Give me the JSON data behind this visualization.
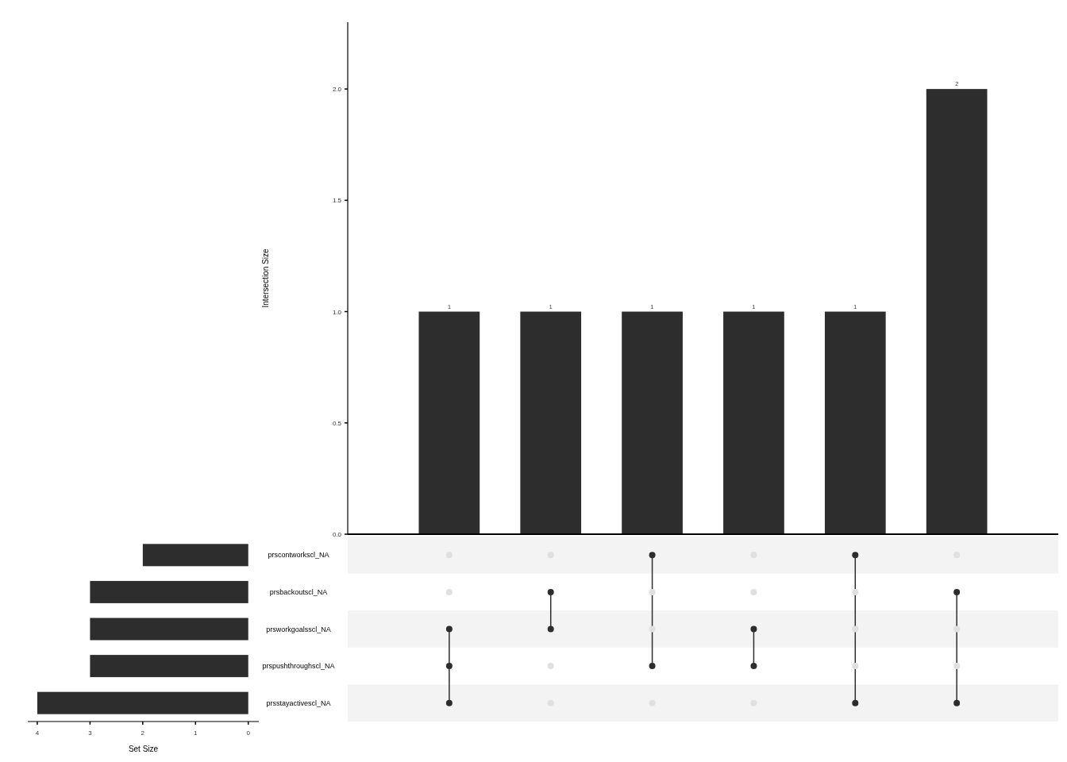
{
  "chart_data": [
    {
      "type": "bar",
      "ylabel": "Intersection Size",
      "categories": [
        null,
        null,
        null,
        null,
        null,
        null
      ],
      "values": [
        1,
        1,
        1,
        1,
        1,
        2
      ],
      "color": "#2d2d2d",
      "ylim": [
        0,
        2.3
      ],
      "yticks": [
        {
          "value": 0,
          "label": "0.0"
        },
        {
          "value": 0.5,
          "label": "0.5"
        },
        {
          "value": 1,
          "label": "1.0"
        },
        {
          "value": 1.5,
          "label": "1.5"
        },
        {
          "value": 2,
          "label": "2.0"
        }
      ],
      "data_labels": true,
      "grid": false
    },
    {
      "type": "bar",
      "orientation": "horizontal",
      "xlabel": "Set Size",
      "categories": [
        "prscontworkscl_NA",
        "prsbackoutscl_NA",
        "prsworkgoalsscl_NA",
        "prspushthroughscl_NA",
        "prsstayactivescl_NA"
      ],
      "values": [
        2,
        3,
        3,
        3,
        4
      ],
      "color": "#2d2d2d",
      "xlim": [
        4.18,
        -0.2
      ],
      "xticks": [
        4,
        3,
        2,
        1,
        0
      ],
      "grid": false
    }
  ]
}
